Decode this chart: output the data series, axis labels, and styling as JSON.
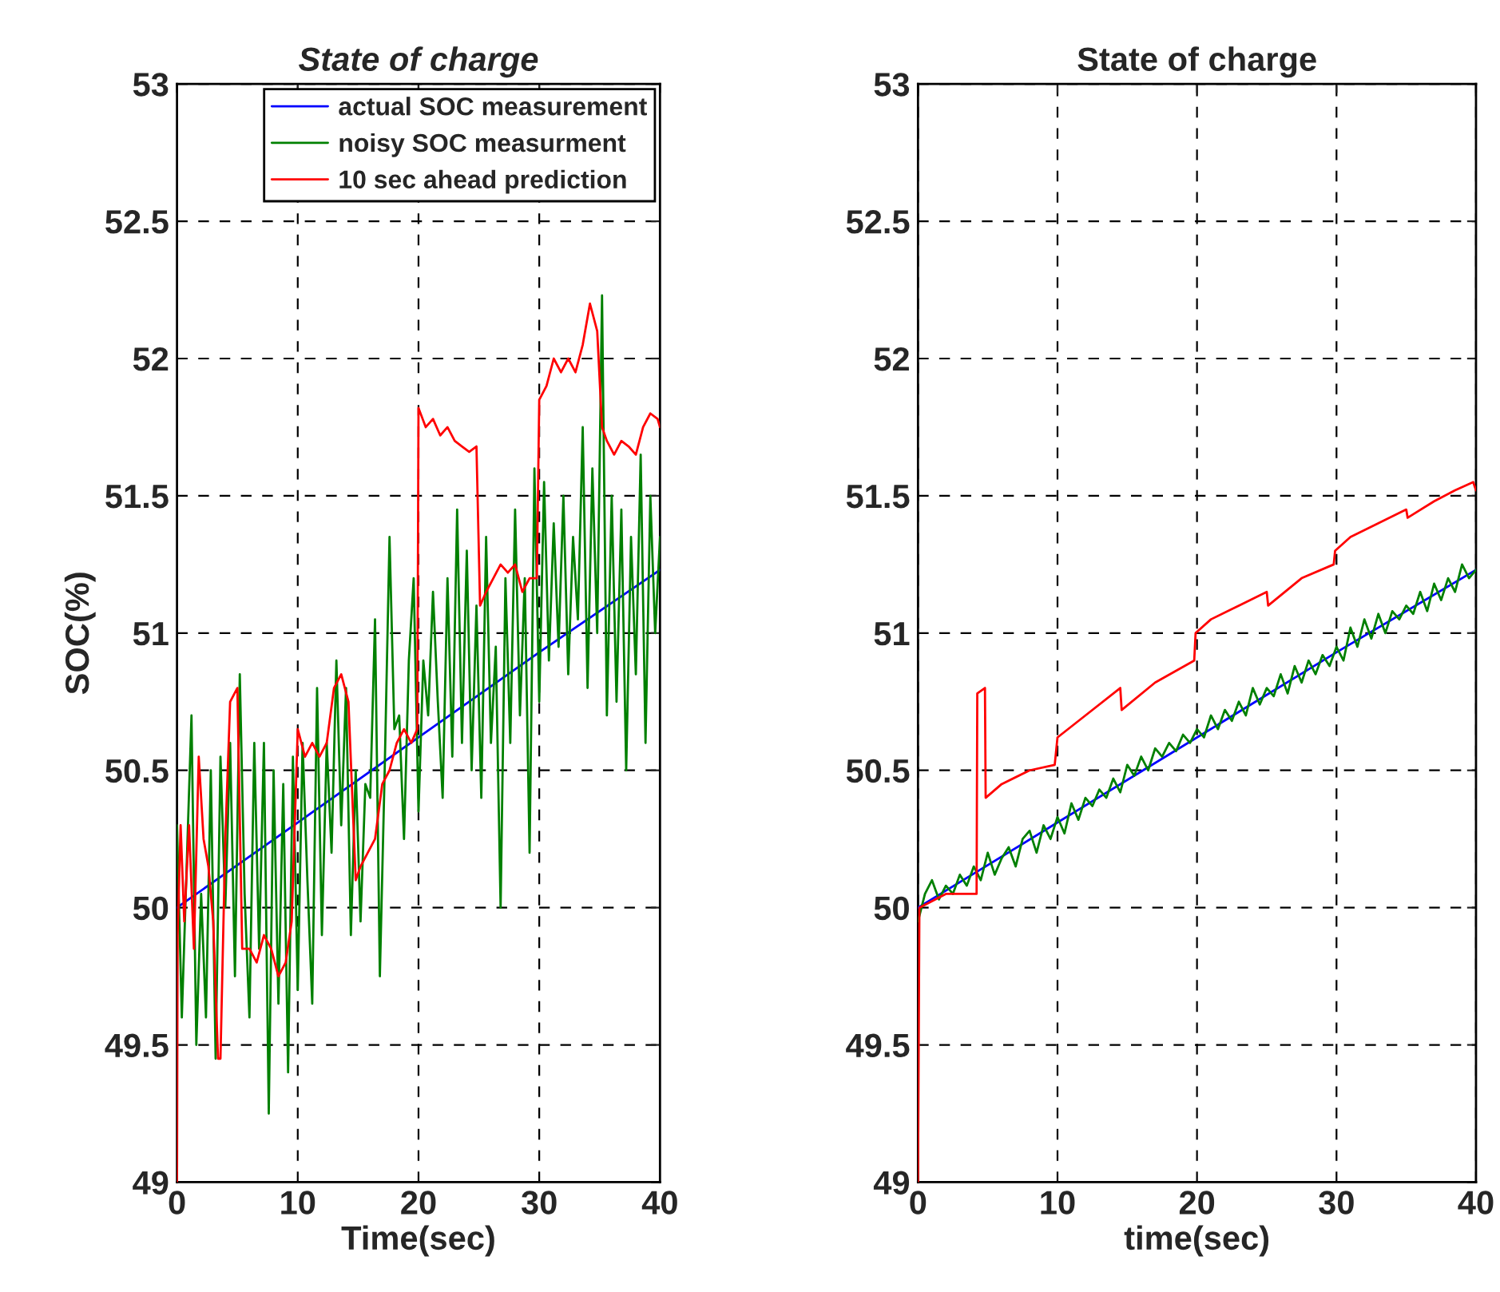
{
  "chart_data": [
    {
      "type": "line",
      "title": "State of charge",
      "xlabel": "Time(sec)",
      "ylabel": "SOC(%)",
      "xlim": [
        0,
        40
      ],
      "ylim": [
        49,
        53
      ],
      "xticks": [
        0,
        10,
        20,
        30,
        40
      ],
      "yticks": [
        49,
        49.5,
        50,
        50.5,
        51,
        51.5,
        52,
        52.5,
        53
      ],
      "grid": true,
      "legend": "top right",
      "line_style": "solid",
      "series": [
        {
          "name": "actual SOC measurement",
          "color": "#0000ff",
          "x": [
            0,
            10,
            20,
            30,
            40
          ],
          "values": [
            50.0,
            50.31,
            50.62,
            50.93,
            51.23
          ]
        },
        {
          "name": "noisy SOC measurment",
          "color": "#008000",
          "x": [
            0,
            0.4,
            0.8,
            1.2,
            1.6,
            2.0,
            2.4,
            2.8,
            3.2,
            3.6,
            4.0,
            4.4,
            4.8,
            5.2,
            5.6,
            6.0,
            6.4,
            6.8,
            7.2,
            7.6,
            8.0,
            8.4,
            8.8,
            9.2,
            9.6,
            10.0,
            10.4,
            10.8,
            11.2,
            11.6,
            12.0,
            12.4,
            12.8,
            13.2,
            13.6,
            14.0,
            14.4,
            14.8,
            15.2,
            15.6,
            16.0,
            16.4,
            16.8,
            17.2,
            17.6,
            18.0,
            18.4,
            18.8,
            19.2,
            19.6,
            20.0,
            20.4,
            20.8,
            21.2,
            21.6,
            22.0,
            22.4,
            22.8,
            23.2,
            23.6,
            24.0,
            24.4,
            24.8,
            25.2,
            25.6,
            26.0,
            26.4,
            26.8,
            27.2,
            27.6,
            28.0,
            28.4,
            28.8,
            29.2,
            29.6,
            30.0,
            30.4,
            30.8,
            31.2,
            31.6,
            32.0,
            32.4,
            32.8,
            33.2,
            33.6,
            34.0,
            34.4,
            34.8,
            35.2,
            35.6,
            36.0,
            36.4,
            36.8,
            37.2,
            37.6,
            38.0,
            38.4,
            38.8,
            39.2,
            39.6,
            40.0
          ],
          "values": [
            50.3,
            49.6,
            50.15,
            50.7,
            49.5,
            50.05,
            49.6,
            50.5,
            49.45,
            50.55,
            50.0,
            50.6,
            49.75,
            50.85,
            50.05,
            49.6,
            50.6,
            49.85,
            50.6,
            49.25,
            50.5,
            49.65,
            50.45,
            49.4,
            50.55,
            49.7,
            50.6,
            50.1,
            49.65,
            50.8,
            49.9,
            50.6,
            50.2,
            50.9,
            50.3,
            50.8,
            49.9,
            50.5,
            49.95,
            50.45,
            50.4,
            51.05,
            49.75,
            50.5,
            51.35,
            50.65,
            50.7,
            50.25,
            50.9,
            51.2,
            50.35,
            50.9,
            50.7,
            51.15,
            50.75,
            50.4,
            51.2,
            50.55,
            51.45,
            50.6,
            51.3,
            50.5,
            51.1,
            50.4,
            51.35,
            50.6,
            50.95,
            50.0,
            51.2,
            50.6,
            51.45,
            50.7,
            51.2,
            50.2,
            51.6,
            50.75,
            51.55,
            50.9,
            51.4,
            50.95,
            51.5,
            50.85,
            51.35,
            51.05,
            51.75,
            50.8,
            51.6,
            51.0,
            52.23,
            50.7,
            51.5,
            50.75,
            51.45,
            50.5,
            51.35,
            50.85,
            51.65,
            50.6,
            51.5,
            51.0,
            51.35
          ]
        },
        {
          "name": "10 sec ahead prediction",
          "color": "#ff0000",
          "x": [
            0,
            0.05,
            0.3,
            0.6,
            1.0,
            1.4,
            1.8,
            2.2,
            2.6,
            3.0,
            3.4,
            3.6,
            4.0,
            4.4,
            5.0,
            5.4,
            6.0,
            6.6,
            7.2,
            7.8,
            8.4,
            9.0,
            9.5,
            10.0,
            10.6,
            11.2,
            11.8,
            12.4,
            13.0,
            13.6,
            14.2,
            14.8,
            15.2,
            15.8,
            16.4,
            17.0,
            17.6,
            18.2,
            18.8,
            19.4,
            19.9,
            20.0,
            20.6,
            21.2,
            21.8,
            22.4,
            23.0,
            23.6,
            24.2,
            24.8,
            25.1,
            25.6,
            26.2,
            26.8,
            27.4,
            28.0,
            28.6,
            29.2,
            29.8,
            30.0,
            30.6,
            31.2,
            31.8,
            32.4,
            33.0,
            33.6,
            34.2,
            34.8,
            35.2,
            35.6,
            36.2,
            36.8,
            37.4,
            38.0,
            38.6,
            39.2,
            39.8,
            40.0
          ],
          "values": [
            49.0,
            49.9,
            50.3,
            49.95,
            50.3,
            49.85,
            50.55,
            50.25,
            50.15,
            49.95,
            49.45,
            49.45,
            50.25,
            50.75,
            50.8,
            49.85,
            49.85,
            49.8,
            49.9,
            49.85,
            49.75,
            49.8,
            49.95,
            50.65,
            50.55,
            50.6,
            50.55,
            50.6,
            50.8,
            50.85,
            50.75,
            50.1,
            50.15,
            50.2,
            50.25,
            50.45,
            50.5,
            50.6,
            50.65,
            50.6,
            50.65,
            51.82,
            51.75,
            51.78,
            51.72,
            51.75,
            51.7,
            51.68,
            51.66,
            51.68,
            51.1,
            51.15,
            51.2,
            51.25,
            51.22,
            51.25,
            51.15,
            51.2,
            51.2,
            51.85,
            51.9,
            52.0,
            51.95,
            52.0,
            51.95,
            52.05,
            52.2,
            52.1,
            51.75,
            51.7,
            51.65,
            51.7,
            51.68,
            51.65,
            51.75,
            51.8,
            51.78,
            51.75
          ]
        }
      ]
    },
    {
      "type": "line",
      "title": "State of charge",
      "xlabel": "time(sec)",
      "xlim": [
        0,
        40
      ],
      "ylim": [
        49,
        53
      ],
      "xticks": [
        0,
        10,
        20,
        30,
        40
      ],
      "yticks": [
        49,
        49.5,
        50,
        50.5,
        51,
        51.5,
        52,
        52.5,
        53
      ],
      "grid": true,
      "line_style": "solid",
      "series": [
        {
          "color": "#0000ff",
          "x": [
            0,
            10,
            20,
            30,
            40
          ],
          "values": [
            50.0,
            50.31,
            50.62,
            50.93,
            51.23
          ]
        },
        {
          "color": "#008000",
          "x": [
            0,
            0.5,
            1.0,
            1.5,
            2.0,
            2.5,
            3.0,
            3.5,
            4.0,
            4.5,
            5.0,
            5.5,
            6.0,
            6.5,
            7.0,
            7.5,
            8.0,
            8.5,
            9.0,
            9.5,
            10.0,
            10.5,
            11.0,
            11.5,
            12.0,
            12.5,
            13.0,
            13.5,
            14.0,
            14.5,
            15.0,
            15.5,
            16.0,
            16.5,
            17.0,
            17.5,
            18.0,
            18.5,
            19.0,
            19.5,
            20.0,
            20.5,
            21.0,
            21.5,
            22.0,
            22.5,
            23.0,
            23.5,
            24.0,
            24.5,
            25.0,
            25.5,
            26.0,
            26.5,
            27.0,
            27.5,
            28.0,
            28.5,
            29.0,
            29.5,
            30.0,
            30.5,
            31.0,
            31.5,
            32.0,
            32.5,
            33.0,
            33.5,
            34.0,
            34.5,
            35.0,
            35.5,
            36.0,
            36.5,
            37.0,
            37.5,
            38.0,
            38.5,
            39.0,
            39.5,
            40.0
          ],
          "values": [
            49.95,
            50.05,
            50.1,
            50.03,
            50.08,
            50.05,
            50.12,
            50.08,
            50.15,
            50.1,
            50.2,
            50.12,
            50.18,
            50.22,
            50.15,
            50.25,
            50.28,
            50.2,
            50.3,
            50.25,
            50.33,
            50.27,
            50.38,
            50.32,
            50.4,
            50.37,
            50.43,
            50.4,
            50.47,
            50.42,
            50.52,
            50.48,
            50.55,
            50.5,
            50.58,
            50.55,
            50.6,
            50.57,
            50.63,
            50.6,
            50.65,
            50.62,
            50.7,
            50.65,
            50.72,
            50.68,
            50.75,
            50.7,
            50.8,
            50.74,
            50.8,
            50.77,
            50.85,
            50.78,
            50.88,
            50.82,
            50.9,
            50.85,
            50.92,
            50.88,
            50.95,
            50.9,
            51.02,
            50.95,
            51.05,
            50.98,
            51.07,
            51.0,
            51.08,
            51.05,
            51.1,
            51.07,
            51.15,
            51.08,
            51.18,
            51.12,
            51.2,
            51.15,
            51.25,
            51.2,
            51.23
          ]
        },
        {
          "color": "#ff0000",
          "x": [
            0,
            0.1,
            2.0,
            4.2,
            4.25,
            4.8,
            4.85,
            6.0,
            8.0,
            9.8,
            10.0,
            12.0,
            14.5,
            14.6,
            17.0,
            19.8,
            19.9,
            21.0,
            23.0,
            25.0,
            25.1,
            27.5,
            29.8,
            29.9,
            31.0,
            33.0,
            35.0,
            35.1,
            37.0,
            38.5,
            39.8,
            40.0
          ],
          "values": [
            49.0,
            50.0,
            50.05,
            50.05,
            50.78,
            50.8,
            50.4,
            50.45,
            50.5,
            50.52,
            50.62,
            50.7,
            50.8,
            50.72,
            50.82,
            50.9,
            51.0,
            51.05,
            51.1,
            51.15,
            51.1,
            51.2,
            51.25,
            51.3,
            51.35,
            51.4,
            51.45,
            51.42,
            51.48,
            51.52,
            51.55,
            51.52
          ]
        }
      ]
    }
  ]
}
